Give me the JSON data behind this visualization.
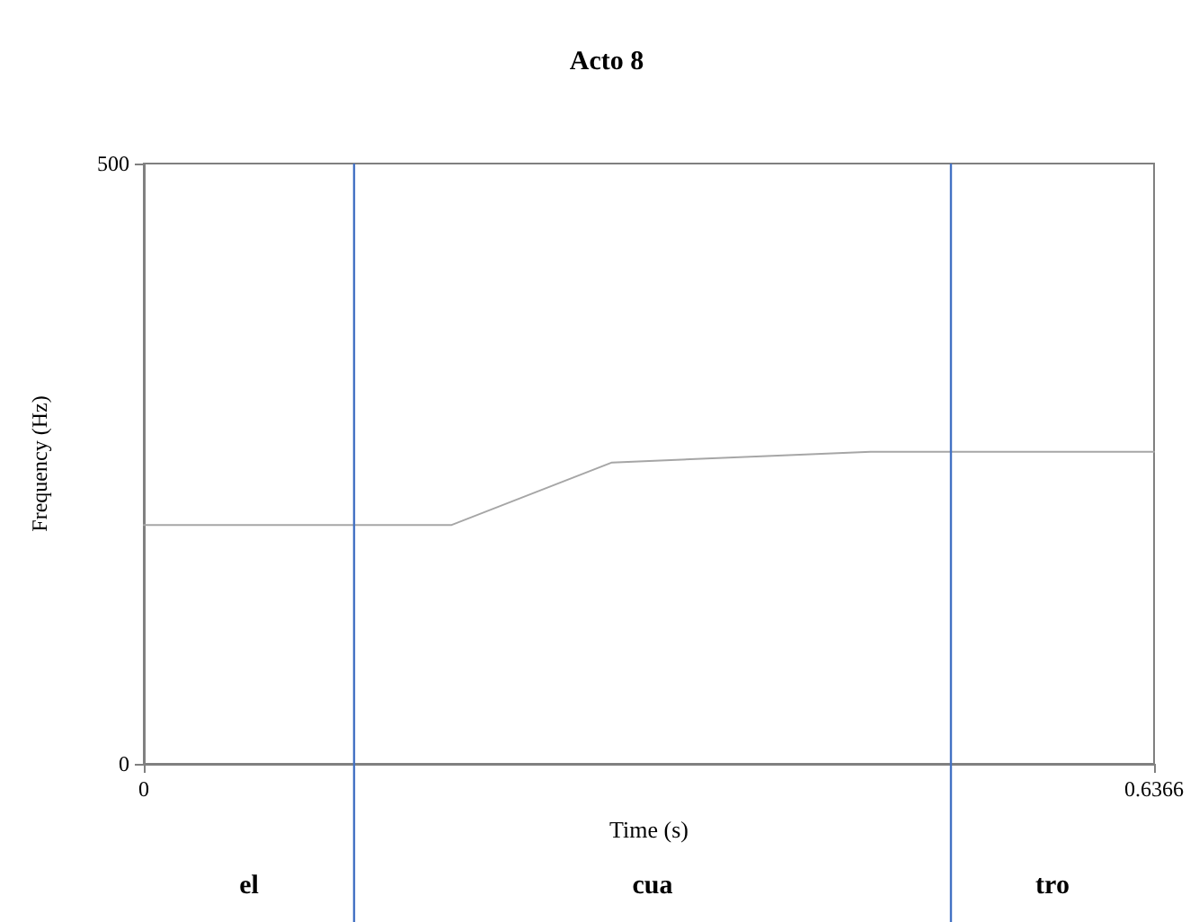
{
  "chart_data": {
    "type": "line",
    "title": "Acto 8",
    "xlabel": "Time (s)",
    "ylabel": "Frequency (Hz)",
    "x": [
      0,
      0.194,
      0.295,
      0.458,
      0.6366
    ],
    "series": [
      {
        "color": "#a6a6a6",
        "values": [
          199,
          199,
          251,
          260,
          260
        ]
      }
    ],
    "xlim": [
      0,
      0.6366
    ],
    "ylim": [
      0,
      500
    ],
    "xticks": [
      0,
      0.6366
    ],
    "yticks": [
      0,
      500
    ],
    "grid": false,
    "marker": "none",
    "line_style": "solid",
    "ref_lines": [
      {
        "axis": "x",
        "value": 0.1325,
        "color": "#4472c4"
      },
      {
        "axis": "x",
        "value": 0.5086,
        "color": "#4472c4"
      }
    ],
    "annotations": [
      "el",
      "cua",
      "tro"
    ]
  }
}
